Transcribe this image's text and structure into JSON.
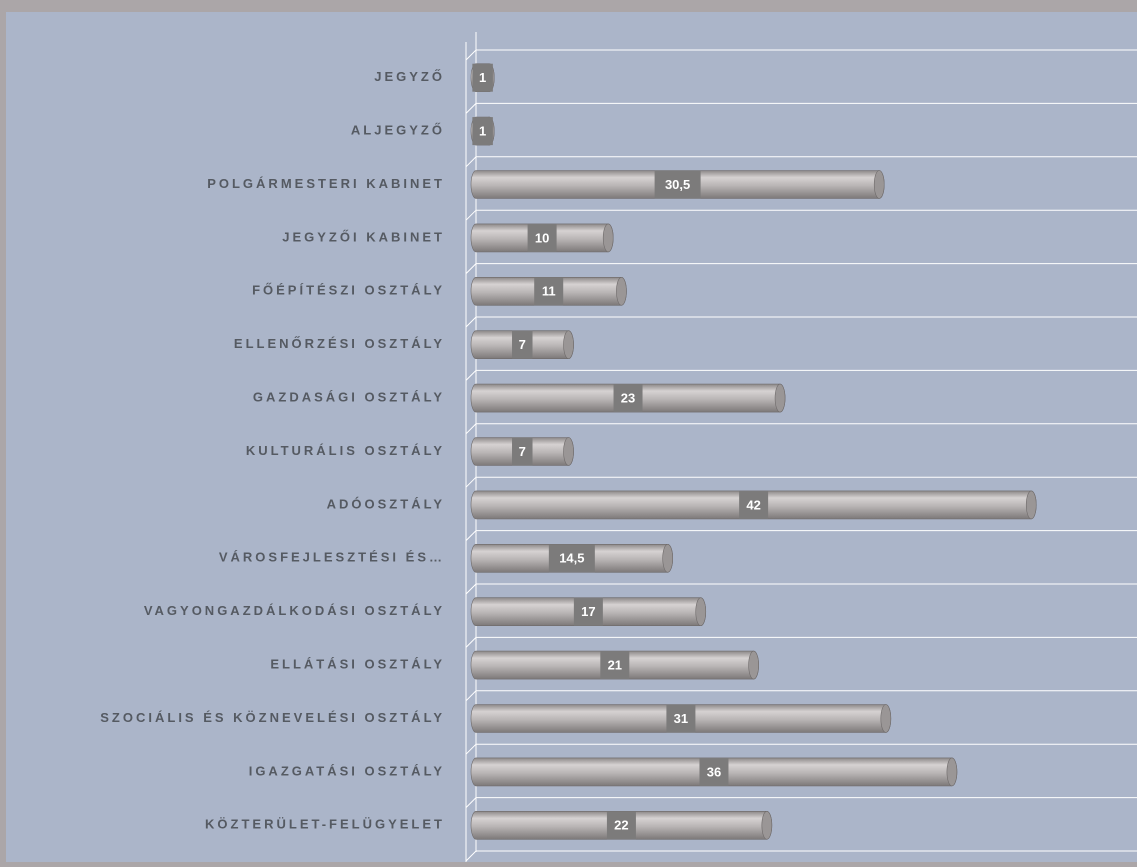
{
  "chart_data": {
    "type": "bar",
    "orientation": "horizontal",
    "categories": [
      "JEGYZŐ",
      "ALJEGYZŐ",
      "POLGÁRMESTERI KABINET",
      "JEGYZŐI KABINET",
      "FŐÉPÍTÉSZI OSZTÁLY",
      "ELLENŐRZÉSI OSZTÁLY",
      "GAZDASÁGI OSZTÁLY",
      "KULTURÁLIS OSZTÁLY",
      "ADÓOSZTÁLY",
      "VÁROSFEJLESZTÉSI ÉS…",
      "VAGYONGAZDÁLKODÁSI OSZTÁLY",
      "ELLÁTÁSI OSZTÁLY",
      "SZOCIÁLIS ÉS KÖZNEVELÉSI OSZTÁLY",
      "IGAZGATÁSI OSZTÁLY",
      "KÖZTERÜLET-FELÜGYELET"
    ],
    "values": [
      1,
      1,
      30.5,
      10,
      11,
      7,
      23,
      7,
      42,
      14.5,
      17,
      21,
      31,
      36,
      22
    ],
    "value_labels": [
      "1",
      "1",
      "30,5",
      "10",
      "11",
      "7",
      "23",
      "7",
      "42",
      "14,5",
      "17",
      "21",
      "31",
      "36",
      "22"
    ],
    "color": "#b4b0b0",
    "xlim": [
      0,
      50
    ]
  }
}
